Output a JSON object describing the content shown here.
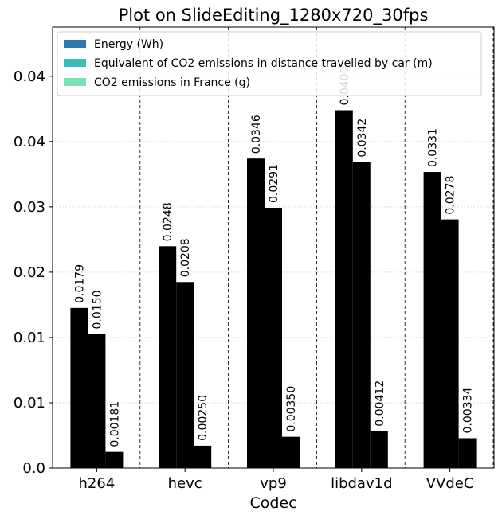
{
  "chart_data": {
    "type": "bar",
    "title": "Plot on SlideEditing_1280x720_30fps",
    "x_label": "Codec",
    "categories": [
      "h264",
      "hevc",
      "vp9",
      "libdav1d",
      "VVdeC"
    ],
    "series": [
      {
        "name": "Energy (Wh)",
        "color": "#2a7aab",
        "values": [
          0.0179,
          0.0248,
          0.0346,
          0.04,
          0.0331
        ],
        "value_labels": [
          "0.0179",
          "0.0248",
          "0.0346",
          "0.0400",
          "0.0331"
        ]
      },
      {
        "name": "Equivalent of CO2 emissions in distance travelled by car (m)",
        "color": "#35bfb8",
        "values": [
          0.015,
          0.0208,
          0.0291,
          0.0342,
          0.0278
        ],
        "value_labels": [
          "0.0150",
          "0.0208",
          "0.0291",
          "0.0342",
          "0.0278"
        ]
      },
      {
        "name": "CO2 emissions in France (g)",
        "color": "#7ddfb6",
        "values": [
          0.00181,
          0.0025,
          0.0035,
          0.00412,
          0.00334
        ],
        "value_labels": [
          "0.00181",
          "0.00250",
          "0.00350",
          "0.00412",
          "0.00334"
        ]
      }
    ],
    "ylim": [
      0,
      0.0493
    ],
    "yticks": [
      {
        "value": 0,
        "label": "0.0"
      },
      {
        "value": 0.0073,
        "label": "0.01"
      },
      {
        "value": 0.0146,
        "label": "0.01"
      },
      {
        "value": 0.0219,
        "label": "0.02"
      },
      {
        "value": 0.0292,
        "label": "0.03"
      },
      {
        "value": 0.0365,
        "label": "0.04"
      },
      {
        "value": 0.0438,
        "label": "0.04"
      }
    ],
    "grid": true,
    "legend": "upper left"
  }
}
